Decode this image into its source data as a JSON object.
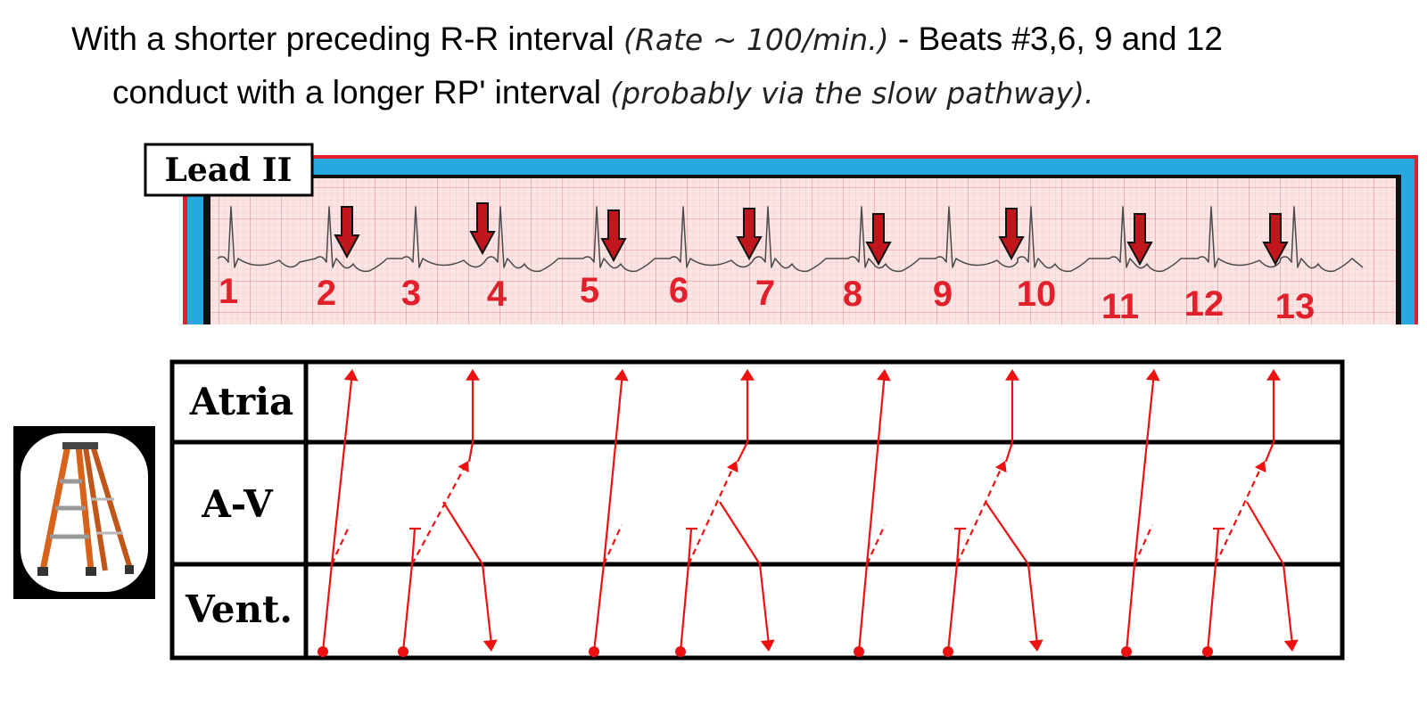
{
  "caption": {
    "line1": {
      "text_a": "With a shorter preceding R-R interval",
      "italic": "(Rate ~ 100/min.)",
      "text_b": "- Beats #3,6, 9 and 12"
    },
    "line2": {
      "text_a": "conduct with a longer RP' interval",
      "italic": "(probably via the slow pathway)."
    }
  },
  "ecg": {
    "lead_label": "Lead II",
    "beats": [
      "1",
      "2",
      "3",
      "4",
      "5",
      "6",
      "7",
      "8",
      "9",
      "10",
      "11",
      "12",
      "13"
    ],
    "arrow_beats": [
      "2",
      "4",
      "5",
      "7",
      "8",
      "10",
      "11",
      "13"
    ]
  },
  "ladder": {
    "rows": [
      "Atria",
      "A-V",
      "Vent."
    ],
    "image_label": "ladder"
  },
  "colors": {
    "ecg_red": "#e0202a",
    "ecg_blue": "#28a8e0",
    "grid_bg": "#fbe4e4",
    "ladder_line": "#ee1111",
    "arrow_fill": "#c0161c"
  }
}
